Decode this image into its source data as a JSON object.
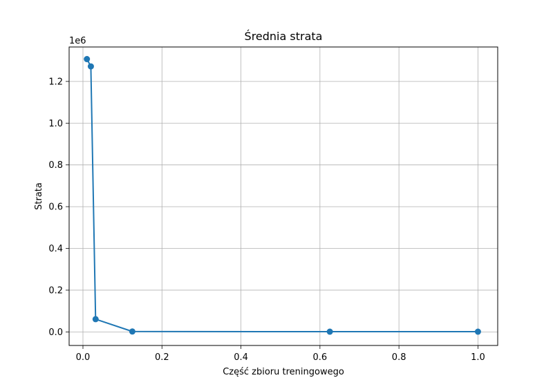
{
  "chart_data": {
    "type": "line",
    "title": "Średnia strata",
    "xlabel": "Część zbioru treningowego",
    "ylabel": "Strata",
    "y_offset_label": "1e6",
    "y_multiplier": 1000000,
    "xlim": [
      -0.035,
      1.05
    ],
    "ylim": [
      -65000,
      1365000
    ],
    "x_ticks": [
      0.0,
      0.2,
      0.4,
      0.6,
      0.8,
      1.0
    ],
    "x_tick_labels": [
      "0.0",
      "0.2",
      "0.4",
      "0.6",
      "0.8",
      "1.0"
    ],
    "y_ticks": [
      0,
      200000,
      400000,
      600000,
      800000,
      1000000,
      1200000
    ],
    "y_tick_labels": [
      "0.0",
      "0.2",
      "0.4",
      "0.6",
      "0.8",
      "1.0",
      "1.2"
    ],
    "grid": true,
    "series": [
      {
        "color": "#1f77b4",
        "marker": "circle",
        "x": [
          0.01,
          0.02,
          0.032,
          0.125,
          0.625,
          1.0
        ],
        "y": [
          1307000,
          1272000,
          61000,
          2000,
          1000,
          1000
        ]
      }
    ]
  }
}
